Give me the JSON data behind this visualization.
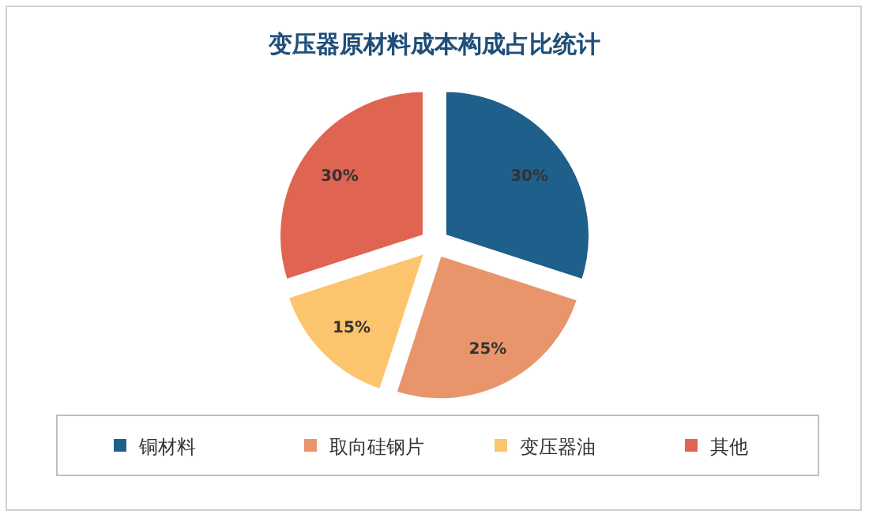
{
  "chart_data": {
    "type": "pie",
    "title": "变压器原材料成本构成占比统计",
    "categories": [
      "铜材料",
      "取向硅钢片",
      "变压器油",
      "其他"
    ],
    "values": [
      30,
      25,
      15,
      30
    ],
    "colors": [
      "#1f5f8b",
      "#e8956b",
      "#fcc46d",
      "#e06452"
    ],
    "value_labels": [
      "30%",
      "25%",
      "15%",
      "30%"
    ],
    "legend": "bottom"
  }
}
